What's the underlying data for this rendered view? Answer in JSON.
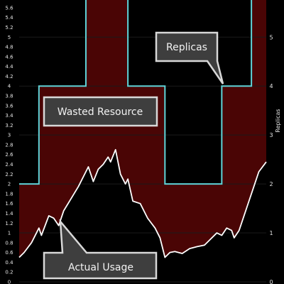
{
  "chart_data": {
    "type": "area",
    "x_range": [
      0,
      100
    ],
    "y_left_range": [
      0,
      5.7
    ],
    "y_left_ticks": [
      "0",
      "0.2",
      "0.4",
      "0.6",
      "0.8",
      "1",
      "1.2",
      "1.4",
      "1.6",
      "1.8",
      "2",
      "2.2",
      "2.4",
      "2.6",
      "2.8",
      "3",
      "3.2",
      "3.4",
      "3.6",
      "3.8",
      "4",
      "4.2",
      "4.4",
      "4.6",
      "4.8",
      "5",
      "5.2",
      "5.4",
      "5.6"
    ],
    "y_left_tick_values": [
      0,
      0.2,
      0.4,
      0.6,
      0.8,
      1,
      1.2,
      1.4,
      1.6,
      1.8,
      2,
      2.2,
      2.4,
      2.6,
      2.8,
      3,
      3.2,
      3.4,
      3.6,
      3.8,
      4,
      4.2,
      4.4,
      4.6,
      4.8,
      5,
      5.2,
      5.4,
      5.6
    ],
    "y_right_range": [
      0,
      5.7
    ],
    "y_right_ticks": [
      "0",
      "1",
      "2",
      "3",
      "4",
      "5"
    ],
    "y_right_tick_values": [
      0,
      1,
      2,
      3,
      4,
      5
    ],
    "y_right_label": "Replicas",
    "series": [
      {
        "name": "Replicas",
        "color": "#5fd3d8",
        "points": [
          [
            0,
            2
          ],
          [
            8,
            2
          ],
          [
            8,
            4
          ],
          [
            27,
            4
          ],
          [
            27,
            6
          ],
          [
            44,
            6
          ],
          [
            44,
            4
          ],
          [
            59,
            4
          ],
          [
            59,
            2
          ],
          [
            82,
            2
          ],
          [
            82,
            4
          ],
          [
            94,
            4
          ],
          [
            94,
            6
          ],
          [
            100,
            6
          ]
        ]
      },
      {
        "name": "Actual Usage",
        "color": "#ffffff",
        "points": [
          [
            0,
            0.5
          ],
          [
            2,
            0.6
          ],
          [
            5,
            0.8
          ],
          [
            8,
            1.1
          ],
          [
            9,
            0.95
          ],
          [
            12,
            1.35
          ],
          [
            14,
            1.3
          ],
          [
            16,
            1.15
          ],
          [
            18,
            1.45
          ],
          [
            21,
            1.7
          ],
          [
            24,
            1.95
          ],
          [
            26,
            2.15
          ],
          [
            28,
            2.35
          ],
          [
            30,
            2.05
          ],
          [
            32,
            2.3
          ],
          [
            34,
            2.4
          ],
          [
            36,
            2.55
          ],
          [
            37,
            2.45
          ],
          [
            39,
            2.7
          ],
          [
            41,
            2.2
          ],
          [
            43,
            2.0
          ],
          [
            44,
            2.1
          ],
          [
            46,
            1.65
          ],
          [
            49,
            1.6
          ],
          [
            52,
            1.3
          ],
          [
            55,
            1.1
          ],
          [
            57,
            0.9
          ],
          [
            59,
            0.5
          ],
          [
            61,
            0.6
          ],
          [
            63,
            0.62
          ],
          [
            66,
            0.58
          ],
          [
            69,
            0.68
          ],
          [
            72,
            0.72
          ],
          [
            75,
            0.75
          ],
          [
            77,
            0.85
          ],
          [
            80,
            1.0
          ],
          [
            82,
            0.95
          ],
          [
            84,
            1.1
          ],
          [
            86,
            1.05
          ],
          [
            87,
            0.9
          ],
          [
            89,
            1.05
          ],
          [
            91,
            1.35
          ],
          [
            93,
            1.65
          ],
          [
            95,
            1.95
          ],
          [
            97,
            2.25
          ],
          [
            100,
            2.45
          ]
        ]
      }
    ],
    "fill": {
      "name": "Wasted Resource",
      "color": "#4a0505"
    }
  },
  "callouts": {
    "replicas": "Replicas",
    "wasted": "Wasted Resource",
    "usage": "Actual Usage"
  }
}
